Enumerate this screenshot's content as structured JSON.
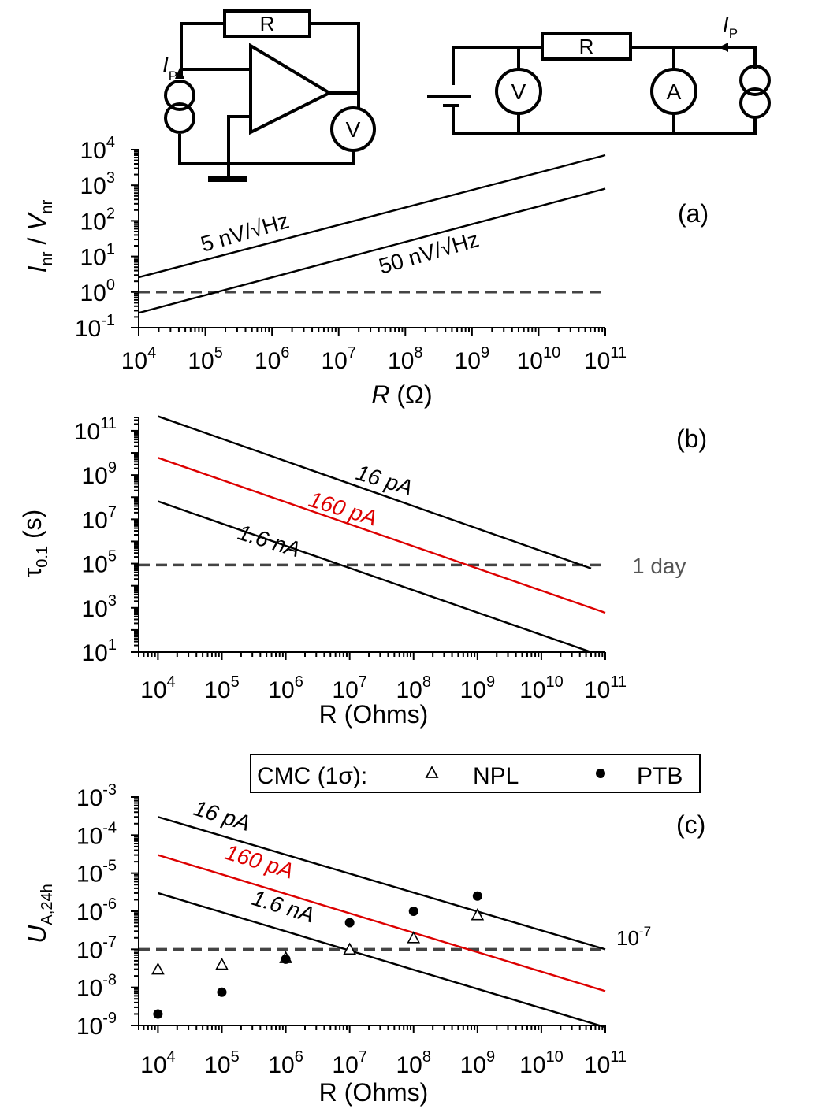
{
  "colors": {
    "line": "#000000",
    "red": "#dd0000",
    "dashed": "#444444",
    "gray_text": "#555555"
  },
  "circuits": {
    "left": {
      "resistor_label": "R",
      "meter_label": "V",
      "current_label": "I",
      "current_sub": "P"
    },
    "right": {
      "resistor_label": "R",
      "voltmeter_label": "V",
      "ammeter_label": "A",
      "current_label": "I",
      "current_sub": "P"
    }
  },
  "chart_data": [
    {
      "id": "a",
      "panel_label": "(a)",
      "type": "line",
      "scale": "log-log",
      "x_range": [
        10000.0,
        100000000000.0
      ],
      "y_range": [
        0.1,
        10000
      ],
      "x_ticks": [
        {
          "v": 10000.0,
          "base": "10",
          "exp": "4"
        },
        {
          "v": 100000.0,
          "base": "10",
          "exp": "5"
        },
        {
          "v": 1000000.0,
          "base": "10",
          "exp": "6"
        },
        {
          "v": 10000000.0,
          "base": "10",
          "exp": "7"
        },
        {
          "v": 100000000.0,
          "base": "10",
          "exp": "8"
        },
        {
          "v": 1000000000.0,
          "base": "10",
          "exp": "9"
        },
        {
          "v": 10000000000.0,
          "base": "10",
          "exp": "10"
        },
        {
          "v": 100000000000.0,
          "base": "10",
          "exp": "11"
        }
      ],
      "y_ticks": [
        {
          "v": 0.1,
          "base": "10",
          "exp": "-1"
        },
        {
          "v": 1,
          "base": "10",
          "exp": "0"
        },
        {
          "v": 10,
          "base": "10",
          "exp": "1"
        },
        {
          "v": 100,
          "base": "10",
          "exp": "2"
        },
        {
          "v": 1000,
          "base": "10",
          "exp": "3"
        },
        {
          "v": 10000,
          "base": "10",
          "exp": "4"
        }
      ],
      "xlabel": {
        "main": "R",
        "unit": " (Ω)"
      },
      "ylabel": {
        "i": "I",
        "i_sub": "nr",
        "sep": " / ",
        "v": "V",
        "v_sub": "nr"
      },
      "series": [
        {
          "name": "5 nV/√Hz",
          "color": "black",
          "points": [
            [
              10000.0,
              2.6
            ],
            [
              100000000000.0,
              7000
            ]
          ]
        },
        {
          "name": "50 nV/√Hz",
          "color": "black",
          "points": [
            [
              10000.0,
              0.26
            ],
            [
              100000000000.0,
              800
            ]
          ]
        }
      ],
      "reference_line": {
        "y": 1,
        "label": ""
      }
    },
    {
      "id": "b",
      "panel_label": "(b)",
      "type": "line",
      "scale": "log-log",
      "x_range": [
        5000,
        100000000000.0
      ],
      "y_range": [
        10,
        400000000000.0
      ],
      "x_ticks": [
        {
          "v": 10000.0,
          "base": "10",
          "exp": "4"
        },
        {
          "v": 100000.0,
          "base": "10",
          "exp": "5"
        },
        {
          "v": 1000000.0,
          "base": "10",
          "exp": "6"
        },
        {
          "v": 10000000.0,
          "base": "10",
          "exp": "7"
        },
        {
          "v": 100000000.0,
          "base": "10",
          "exp": "8"
        },
        {
          "v": 1000000000.0,
          "base": "10",
          "exp": "9"
        },
        {
          "v": 10000000000.0,
          "base": "10",
          "exp": "10"
        },
        {
          "v": 100000000000.0,
          "base": "10",
          "exp": "11"
        }
      ],
      "y_ticks": [
        {
          "v": 10,
          "base": "10",
          "exp": "1"
        },
        {
          "v": 1000,
          "base": "10",
          "exp": "3"
        },
        {
          "v": 100000.0,
          "base": "10",
          "exp": "5"
        },
        {
          "v": 10000000.0,
          "base": "10",
          "exp": "7"
        },
        {
          "v": 1000000000.0,
          "base": "10",
          "exp": "9"
        },
        {
          "v": 100000000000.0,
          "base": "10",
          "exp": "11"
        }
      ],
      "xlabel": {
        "main": "R (Ohms)"
      },
      "ylabel": {
        "tau": "τ",
        "sub": "0.1",
        "unit": " (s)"
      },
      "series": [
        {
          "name": "16 pA",
          "color": "black",
          "points": [
            [
              10000.0,
              450000000000.0
            ],
            [
              60000000000.0,
              60000.0
            ]
          ]
        },
        {
          "name": "160 pA",
          "color": "red",
          "points": [
            [
              10000.0,
              6000000000.0
            ],
            [
              100000000000.0,
              600
            ]
          ]
        },
        {
          "name": "1.6 nA",
          "color": "black",
          "points": [
            [
              10000.0,
              65000000.0
            ],
            [
              60000000000.0,
              10
            ]
          ]
        }
      ],
      "reference_line": {
        "y": 86400,
        "label": "1 day"
      }
    },
    {
      "id": "c",
      "panel_label": "(c)",
      "type": "scatter",
      "scale": "log-log",
      "x_range": [
        5000,
        100000000000.0
      ],
      "y_range": [
        1e-09,
        0.001
      ],
      "x_ticks": [
        {
          "v": 10000.0,
          "base": "10",
          "exp": "4"
        },
        {
          "v": 100000.0,
          "base": "10",
          "exp": "5"
        },
        {
          "v": 1000000.0,
          "base": "10",
          "exp": "6"
        },
        {
          "v": 10000000.0,
          "base": "10",
          "exp": "7"
        },
        {
          "v": 100000000.0,
          "base": "10",
          "exp": "8"
        },
        {
          "v": 1000000000.0,
          "base": "10",
          "exp": "9"
        },
        {
          "v": 10000000000.0,
          "base": "10",
          "exp": "10"
        },
        {
          "v": 100000000000.0,
          "base": "10",
          "exp": "11"
        }
      ],
      "y_ticks": [
        {
          "v": 1e-09,
          "base": "10",
          "exp": "-9"
        },
        {
          "v": 1e-08,
          "base": "10",
          "exp": "-8"
        },
        {
          "v": 1e-07,
          "base": "10",
          "exp": "-7"
        },
        {
          "v": 1e-06,
          "base": "10",
          "exp": "-6"
        },
        {
          "v": 1e-05,
          "base": "10",
          "exp": "-5"
        },
        {
          "v": 0.0001,
          "base": "10",
          "exp": "-4"
        },
        {
          "v": 0.001,
          "base": "10",
          "exp": "-3"
        }
      ],
      "xlabel": {
        "main": "R (Ohms)"
      },
      "ylabel": {
        "u": "U",
        "sub": "A,24h"
      },
      "series": [
        {
          "name": "16 pA",
          "color": "black",
          "points": [
            [
              10000.0,
              0.0003
            ],
            [
              100000000000.0,
              1e-07
            ]
          ]
        },
        {
          "name": "160 pA",
          "color": "red",
          "points": [
            [
              10000.0,
              3e-05
            ],
            [
              100000000000.0,
              8e-09
            ]
          ]
        },
        {
          "name": "1.6 nA",
          "color": "black",
          "points": [
            [
              10000.0,
              3e-06
            ],
            [
              100000000000.0,
              9e-10
            ]
          ]
        }
      ],
      "reference_line": {
        "y": 1e-07,
        "label_base": "10",
        "label_exp": "-7"
      },
      "legend": {
        "title": "CMC (1σ):",
        "entries": [
          {
            "name": "NPL",
            "marker": "triangle"
          },
          {
            "name": "PTB",
            "marker": "circle"
          }
        ]
      },
      "scatter": {
        "NPL": [
          [
            10000.0,
            3e-08
          ],
          [
            100000.0,
            4e-08
          ],
          [
            1000000.0,
            6e-08
          ],
          [
            10000000.0,
            1e-07
          ],
          [
            100000000.0,
            2e-07
          ],
          [
            1000000000.0,
            8e-07
          ]
        ],
        "PTB": [
          [
            10000.0,
            2e-09
          ],
          [
            100000.0,
            7.5e-09
          ],
          [
            1000000.0,
            5.5e-08
          ],
          [
            10000000.0,
            5e-07
          ],
          [
            100000000.0,
            1e-06
          ],
          [
            1000000000.0,
            2.5e-06
          ]
        ]
      }
    }
  ]
}
